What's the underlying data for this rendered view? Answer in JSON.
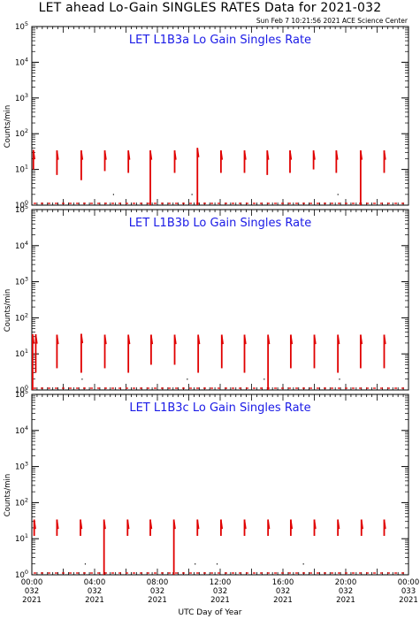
{
  "title": "LET ahead Lo-Gain SINGLES RATES Data for 2021-032",
  "timestamp": "Sun Feb  7 10:21:56 2021 ACE Science Center",
  "colors": {
    "data": "#e00000",
    "panel_title": "#1a1ae6",
    "axis": "#000000"
  },
  "chart_data": [
    {
      "type": "line",
      "title": "LET L1B3a Lo Gain Singles Rate",
      "ylabel": "Counts/min",
      "xlabel": "UTC Day of Year",
      "yscale": "log",
      "ylim": [
        1,
        100000
      ],
      "y_ticks": [
        1,
        10,
        100,
        1000,
        10000,
        100000
      ],
      "xlim": [
        0,
        24
      ],
      "bursts": [
        {
          "x": 0.1,
          "top": 35,
          "bottom": 10
        },
        {
          "x": 1.6,
          "top": 34,
          "bottom": 7
        },
        {
          "x": 3.15,
          "top": 34,
          "bottom": 5
        },
        {
          "x": 4.65,
          "top": 34,
          "bottom": 9
        },
        {
          "x": 6.15,
          "top": 34,
          "bottom": 8
        },
        {
          "x": 7.55,
          "top": 34,
          "bottom": 1
        },
        {
          "x": 9.1,
          "top": 34,
          "bottom": 8
        },
        {
          "x": 10.55,
          "top": 40,
          "bottom": 1
        },
        {
          "x": 12.05,
          "top": 34,
          "bottom": 8
        },
        {
          "x": 13.55,
          "top": 34,
          "bottom": 8
        },
        {
          "x": 15.0,
          "top": 34,
          "bottom": 7
        },
        {
          "x": 16.45,
          "top": 34,
          "bottom": 8
        },
        {
          "x": 17.95,
          "top": 34,
          "bottom": 10
        },
        {
          "x": 19.4,
          "top": 34,
          "bottom": 8
        },
        {
          "x": 20.95,
          "top": 34,
          "bottom": 1
        },
        {
          "x": 22.45,
          "top": 34,
          "bottom": 8
        }
      ],
      "points": [
        {
          "x": 5.2,
          "y": 2
        },
        {
          "x": 10.2,
          "y": 2
        },
        {
          "x": 19.5,
          "y": 2
        }
      ]
    },
    {
      "type": "line",
      "title": "LET L1B3b Lo Gain Singles Rate",
      "ylabel": "Counts/min",
      "xlabel": "UTC Day of Year",
      "yscale": "log",
      "ylim": [
        1,
        100000
      ],
      "y_ticks": [
        1,
        10,
        100,
        1000,
        10000,
        100000
      ],
      "xlim": [
        0,
        24
      ],
      "bursts": [
        {
          "x": 0.05,
          "top": 35,
          "bottom": 1
        },
        {
          "x": 0.25,
          "top": 35,
          "bottom": 3
        },
        {
          "x": 1.6,
          "top": 34,
          "bottom": 4
        },
        {
          "x": 3.15,
          "top": 36,
          "bottom": 3
        },
        {
          "x": 4.65,
          "top": 34,
          "bottom": 4
        },
        {
          "x": 6.15,
          "top": 34,
          "bottom": 3
        },
        {
          "x": 7.6,
          "top": 34,
          "bottom": 5
        },
        {
          "x": 9.1,
          "top": 34,
          "bottom": 5
        },
        {
          "x": 10.6,
          "top": 34,
          "bottom": 3
        },
        {
          "x": 12.1,
          "top": 34,
          "bottom": 4
        },
        {
          "x": 13.55,
          "top": 34,
          "bottom": 3
        },
        {
          "x": 15.05,
          "top": 34,
          "bottom": 1
        },
        {
          "x": 16.5,
          "top": 34,
          "bottom": 4
        },
        {
          "x": 18.0,
          "top": 34,
          "bottom": 4
        },
        {
          "x": 19.5,
          "top": 34,
          "bottom": 3
        },
        {
          "x": 20.95,
          "top": 34,
          "bottom": 4
        },
        {
          "x": 22.45,
          "top": 34,
          "bottom": 4
        }
      ],
      "points": [
        {
          "x": 3.2,
          "y": 2
        },
        {
          "x": 9.9,
          "y": 2
        },
        {
          "x": 14.8,
          "y": 2
        },
        {
          "x": 19.6,
          "y": 2
        }
      ]
    },
    {
      "type": "line",
      "title": "LET L1B3c Lo Gain Singles Rate",
      "ylabel": "Counts/min",
      "xlabel": "UTC Day of Year",
      "yscale": "log",
      "ylim": [
        1,
        100000
      ],
      "y_ticks": [
        1,
        10,
        100,
        1000,
        10000,
        100000
      ],
      "xlim": [
        0,
        24
      ],
      "x_ticks": [
        {
          "value": 0,
          "time": "00:00",
          "day": "032",
          "year": "2021"
        },
        {
          "value": 4,
          "time": "04:00",
          "day": "032",
          "year": "2021"
        },
        {
          "value": 8,
          "time": "08:00",
          "day": "032",
          "year": "2021"
        },
        {
          "value": 12,
          "time": "12:00",
          "day": "032",
          "year": "2021"
        },
        {
          "value": 16,
          "time": "16:00",
          "day": "032",
          "year": "2021"
        },
        {
          "value": 20,
          "time": "20:00",
          "day": "032",
          "year": "2021"
        },
        {
          "value": 24,
          "time": "00:00",
          "day": "033",
          "year": "2021"
        }
      ],
      "bursts": [
        {
          "x": 0.15,
          "top": 34,
          "bottom": 12
        },
        {
          "x": 1.6,
          "top": 34,
          "bottom": 12
        },
        {
          "x": 3.1,
          "top": 34,
          "bottom": 12
        },
        {
          "x": 4.6,
          "top": 34,
          "bottom": 1
        },
        {
          "x": 6.1,
          "top": 34,
          "bottom": 12
        },
        {
          "x": 7.55,
          "top": 34,
          "bottom": 12
        },
        {
          "x": 9.05,
          "top": 34,
          "bottom": 1
        },
        {
          "x": 10.55,
          "top": 34,
          "bottom": 12
        },
        {
          "x": 12.05,
          "top": 34,
          "bottom": 12
        },
        {
          "x": 13.55,
          "top": 34,
          "bottom": 12
        },
        {
          "x": 15.05,
          "top": 34,
          "bottom": 12
        },
        {
          "x": 16.5,
          "top": 34,
          "bottom": 12
        },
        {
          "x": 18.0,
          "top": 34,
          "bottom": 12
        },
        {
          "x": 19.5,
          "top": 34,
          "bottom": 12
        },
        {
          "x": 21.0,
          "top": 34,
          "bottom": 12
        },
        {
          "x": 22.45,
          "top": 34,
          "bottom": 12
        }
      ],
      "points": [
        {
          "x": 3.4,
          "y": 2
        },
        {
          "x": 10.4,
          "y": 2
        },
        {
          "x": 11.8,
          "y": 2
        },
        {
          "x": 17.3,
          "y": 2
        }
      ]
    }
  ]
}
